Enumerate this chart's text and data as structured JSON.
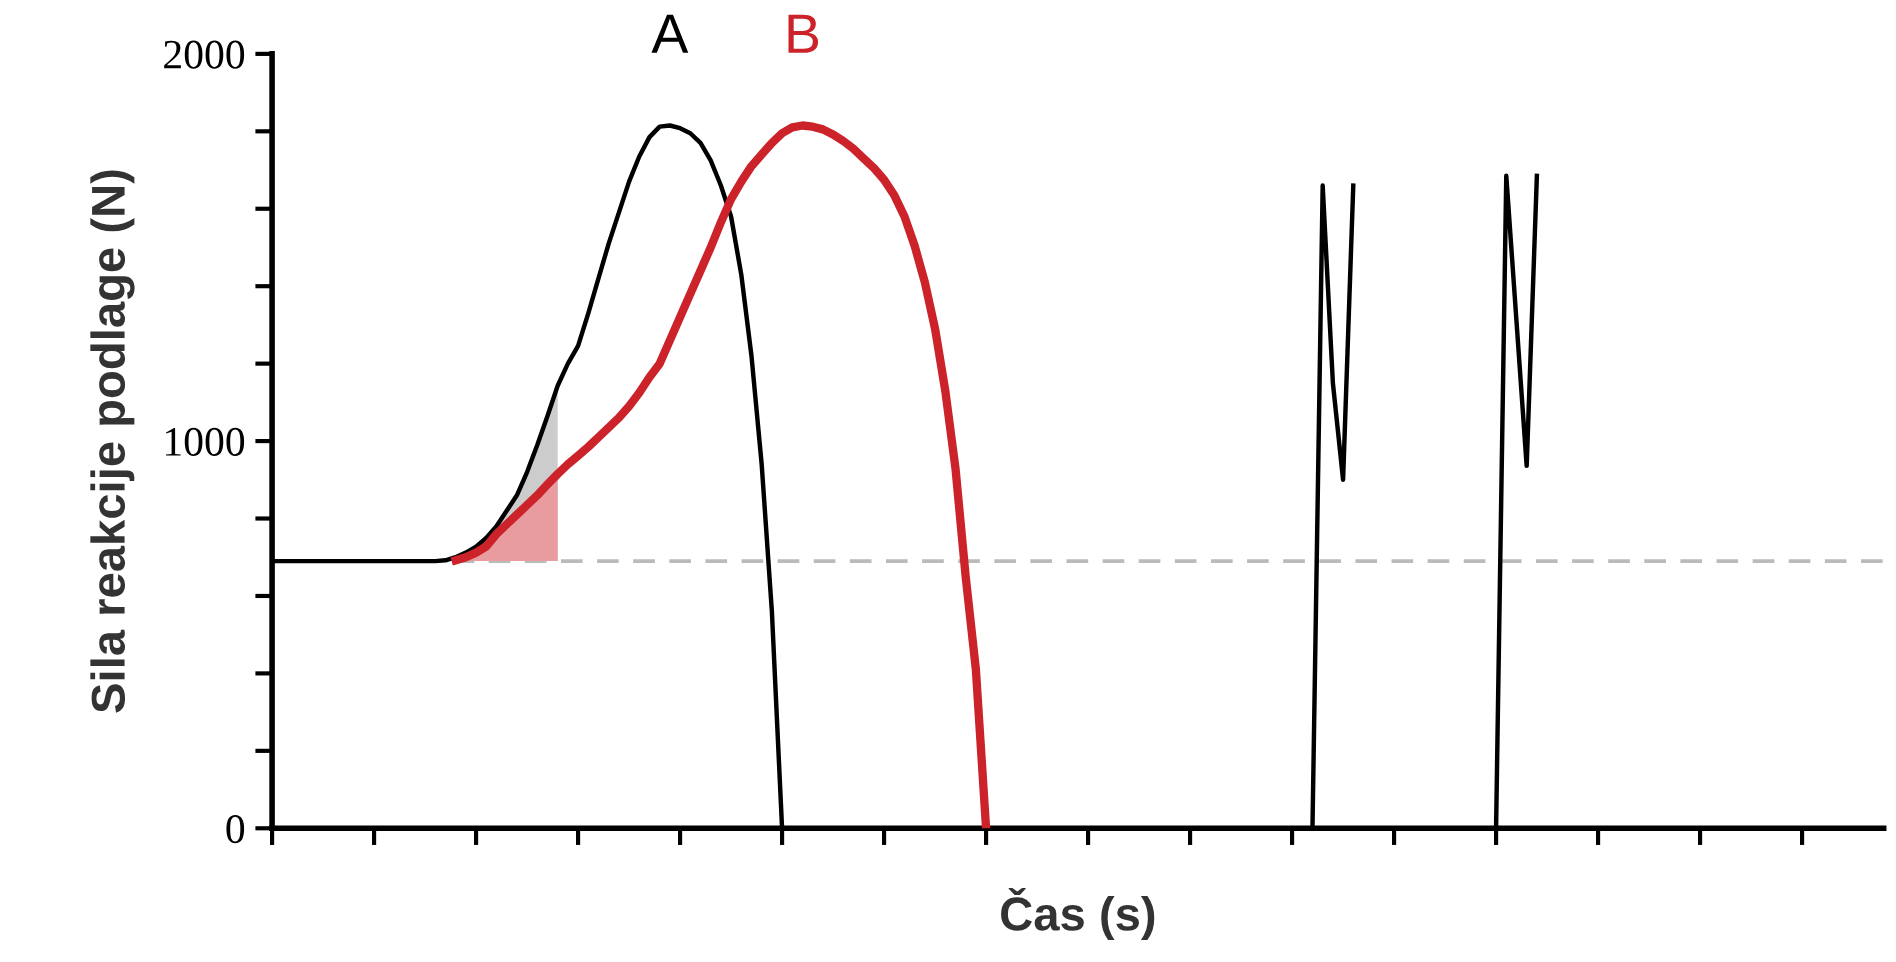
{
  "chart_data": {
    "type": "line",
    "xlabel": "Čas (s)",
    "ylabel": "Sila reakcije podlage (N)",
    "categories": [
      null,
      null,
      null,
      null,
      null,
      null,
      null,
      null,
      null,
      null,
      null,
      null,
      null,
      null,
      null,
      null,
      null,
      null,
      null,
      null,
      null,
      null,
      null,
      null,
      null,
      null,
      null,
      null,
      null,
      null,
      null,
      null,
      null,
      null,
      null,
      null,
      null,
      null,
      null,
      null,
      null,
      null,
      null,
      null,
      null,
      null,
      null,
      null,
      null,
      null,
      null,
      null,
      null,
      null,
      null,
      null,
      null,
      null,
      null,
      null,
      null,
      null,
      null,
      null,
      null,
      null,
      null,
      null,
      null,
      null,
      null,
      null,
      null,
      null,
      null,
      null,
      null,
      null,
      null,
      null,
      null,
      null,
      null,
      null,
      null,
      null,
      null,
      null,
      null,
      null,
      null,
      null,
      null,
      null,
      null,
      null,
      null,
      null,
      null,
      null,
      null,
      null,
      null,
      null,
      null,
      null,
      null,
      null,
      null,
      null,
      null,
      null,
      null,
      null,
      null,
      null,
      null,
      null,
      null,
      null,
      null,
      null,
      null,
      null,
      null,
      null,
      null,
      null,
      null,
      null,
      null,
      null,
      null,
      null,
      null,
      null,
      null,
      null,
      null,
      null,
      null,
      null,
      null,
      null,
      null,
      null,
      null,
      null,
      null,
      null,
      null,
      null,
      null,
      null,
      null,
      null,
      null,
      null,
      null
    ],
    "ylim": [
      0,
      2000
    ],
    "yticks": [
      0,
      {
        "value": 200,
        "label": null
      },
      {
        "value": 400,
        "label": null
      },
      {
        "value": 600,
        "label": null
      },
      {
        "value": 800,
        "label": null
      },
      1000,
      {
        "value": 1200,
        "label": null
      },
      {
        "value": 1400,
        "label": null
      },
      {
        "value": 1600,
        "label": null
      },
      {
        "value": 1800,
        "label": null
      },
      2000
    ],
    "grid": false,
    "legend": false,
    "marker": "none",
    "line_style": "solid",
    "ref_lines": [
      {
        "axis": "y",
        "value": 690,
        "color": "#bbbbbb",
        "line_style": "dashed"
      }
    ],
    "series": [
      {
        "name": "A",
        "color": "#000000",
        "values": [
          690,
          690,
          690,
          690,
          690,
          690,
          690,
          690,
          690,
          690,
          690,
          690,
          690,
          690,
          690,
          690,
          690,
          692,
          700,
          712,
          727,
          750,
          780,
          820,
          860,
          920,
          990,
          1065,
          1143,
          1200,
          1246,
          1330,
          1420,
          1510,
          1590,
          1670,
          1735,
          1785,
          1812,
          1815,
          1808,
          1795,
          1770,
          1725,
          1660,
          1580,
          1430,
          1220,
          940,
          560,
          0,
          null,
          null,
          null,
          null,
          null,
          null,
          null,
          null,
          null,
          null,
          null,
          null,
          null,
          null,
          null,
          null,
          null,
          null,
          null,
          null,
          null,
          null,
          null,
          null,
          null,
          null,
          null,
          null,
          null,
          null,
          null,
          null,
          null,
          null,
          null,
          null,
          null,
          null,
          null,
          null,
          null,
          null,
          null,
          null,
          null,
          null,
          null,
          null,
          null,
          null,
          null,
          null,
          null,
          null,
          null,
          null,
          null,
          null,
          null,
          null,
          null,
          null,
          null,
          null,
          null,
          null,
          null,
          null,
          null,
          null,
          null,
          null,
          null,
          null,
          null,
          null,
          null,
          null,
          null,
          null,
          null,
          null,
          null,
          null,
          null,
          null,
          null,
          null,
          null,
          null,
          null,
          null,
          null,
          null,
          null,
          null,
          null,
          null,
          null,
          null,
          null,
          null,
          null,
          null,
          null,
          null,
          null,
          null
        ],
        "lower": [
          null,
          null,
          null,
          null,
          null,
          null,
          null,
          null,
          null,
          null,
          null,
          null,
          null,
          null,
          null,
          null,
          null,
          690,
          690,
          690,
          690,
          690,
          690,
          690,
          690,
          690,
          690,
          690,
          690,
          null,
          null,
          null,
          null,
          null,
          null,
          null,
          null,
          null,
          null,
          null,
          null,
          null,
          null,
          null,
          null,
          null,
          null,
          null,
          null,
          null,
          null,
          null,
          null,
          null,
          null,
          null,
          null,
          null,
          null,
          null,
          null,
          null,
          null,
          null,
          null,
          null,
          null,
          null,
          null,
          null,
          null,
          null,
          null,
          null,
          null,
          null,
          null,
          null,
          null,
          null,
          null,
          null,
          null,
          null,
          null,
          null,
          null,
          null,
          null,
          null,
          null,
          null,
          null,
          null,
          null,
          null,
          null,
          null,
          null,
          null,
          null,
          null,
          null,
          null,
          null,
          null,
          null,
          null,
          null,
          null,
          null,
          null,
          null,
          null,
          null,
          null,
          null,
          null,
          null,
          null,
          null,
          null,
          null,
          null,
          null,
          null,
          null,
          null,
          null,
          null,
          null,
          null,
          null,
          null,
          null,
          null,
          null,
          null,
          null,
          null,
          null,
          null,
          null,
          null,
          null,
          null,
          null,
          null,
          null,
          null,
          null,
          null,
          null,
          null,
          null,
          null,
          null,
          null,
          null
        ],
        "upper": [
          null,
          null,
          null,
          null,
          null,
          null,
          null,
          null,
          null,
          null,
          null,
          null,
          null,
          null,
          null,
          null,
          null,
          692,
          700,
          712,
          727,
          750,
          780,
          820,
          860,
          920,
          990,
          1065,
          1143,
          null,
          null,
          null,
          null,
          null,
          null,
          null,
          null,
          null,
          null,
          null,
          null,
          null,
          null,
          null,
          null,
          null,
          null,
          null,
          null,
          null,
          null,
          null,
          null,
          null,
          null,
          null,
          null,
          null,
          null,
          null,
          null,
          null,
          null,
          null,
          null,
          null,
          null,
          null,
          null,
          null,
          null,
          null,
          null,
          null,
          null,
          null,
          null,
          null,
          null,
          null,
          null,
          null,
          null,
          null,
          null,
          null,
          null,
          null,
          null,
          null,
          null,
          null,
          null,
          null,
          null,
          null,
          null,
          null,
          null,
          null,
          null,
          null,
          null,
          null,
          null,
          null,
          null,
          null,
          null,
          null,
          null,
          null,
          null,
          null,
          null,
          null,
          null,
          null,
          null,
          null,
          null,
          null,
          null,
          null,
          null,
          null,
          null,
          null,
          null,
          null,
          null,
          null,
          null,
          null,
          null,
          null,
          null,
          null,
          null,
          null,
          null,
          null,
          null,
          null,
          null,
          null,
          null,
          null,
          null,
          null,
          null,
          null,
          null,
          null,
          null,
          null,
          null,
          null,
          null
        ]
      },
      {
        "name": "B",
        "color": "#cc2229",
        "values": [
          null,
          null,
          null,
          null,
          null,
          null,
          null,
          null,
          null,
          null,
          null,
          null,
          null,
          null,
          null,
          null,
          null,
          null,
          692,
          700,
          712,
          728,
          760,
          785,
          810,
          835,
          860,
          888,
          915,
          940,
          962,
          985,
          1010,
          1035,
          1060,
          1090,
          1125,
          1165,
          1200,
          1260,
          1320,
          1380,
          1440,
          1500,
          1565,
          1625,
          1670,
          1710,
          1740,
          1770,
          1795,
          1810,
          1815,
          1812,
          1805,
          1792,
          1775,
          1755,
          1730,
          1705,
          1675,
          1635,
          1580,
          1504,
          1410,
          1290,
          1130,
          930,
          650,
          410,
          0,
          null,
          null,
          null,
          null,
          null,
          null,
          null,
          null,
          null,
          null,
          null,
          null,
          null,
          null,
          null,
          null,
          null,
          null,
          null,
          null,
          null,
          null,
          null,
          null,
          null,
          null,
          null,
          null,
          null,
          null,
          null,
          null,
          null,
          null,
          null,
          null,
          null,
          null,
          null,
          null,
          null,
          null,
          null,
          null,
          null,
          null,
          null,
          null,
          null,
          null,
          null,
          null,
          null,
          null,
          null,
          null,
          null,
          null,
          null,
          null,
          null,
          null,
          null,
          null,
          null,
          null,
          null,
          null,
          null,
          null,
          null,
          null,
          null,
          null,
          null,
          null,
          null,
          null,
          null,
          null,
          null,
          null,
          null,
          null,
          null,
          null,
          null,
          null
        ],
        "lower": [
          null,
          null,
          null,
          null,
          null,
          null,
          null,
          null,
          null,
          null,
          null,
          null,
          null,
          null,
          null,
          null,
          null,
          null,
          690,
          690,
          690,
          690,
          690,
          690,
          690,
          690,
          690,
          690,
          690,
          null,
          null,
          null,
          null,
          null,
          null,
          null,
          null,
          null,
          null,
          null,
          null,
          null,
          null,
          null,
          null,
          null,
          null,
          null,
          null,
          null,
          null,
          null,
          null,
          null,
          null,
          null,
          null,
          null,
          null,
          null,
          null,
          null,
          null,
          null,
          null,
          null,
          null,
          null,
          null,
          null,
          null,
          null,
          null,
          null,
          null,
          null,
          null,
          null,
          null,
          null,
          null,
          null,
          null,
          null,
          null,
          null,
          null,
          null,
          null,
          null,
          null,
          null,
          null,
          null,
          null,
          null,
          null,
          null,
          null,
          null,
          null,
          null,
          null,
          null,
          null,
          null,
          null,
          null,
          null,
          null,
          null,
          null,
          null,
          null,
          null,
          null,
          null,
          null,
          null,
          null,
          null,
          null,
          null,
          null,
          null,
          null,
          null,
          null,
          null,
          null,
          null,
          null,
          null,
          null,
          null,
          null,
          null,
          null,
          null,
          null,
          null,
          null,
          null,
          null,
          null,
          null,
          null,
          null,
          null,
          null,
          null,
          null,
          null,
          null,
          null,
          null,
          null,
          null,
          null
        ],
        "upper": [
          null,
          null,
          null,
          null,
          null,
          null,
          null,
          null,
          null,
          null,
          null,
          null,
          null,
          null,
          null,
          null,
          null,
          null,
          692,
          700,
          712,
          728,
          760,
          785,
          810,
          835,
          860,
          888,
          915,
          null,
          null,
          null,
          null,
          null,
          null,
          null,
          null,
          null,
          null,
          null,
          null,
          null,
          null,
          null,
          null,
          null,
          null,
          null,
          null,
          null,
          null,
          null,
          null,
          null,
          null,
          null,
          null,
          null,
          null,
          null,
          null,
          null,
          null,
          null,
          null,
          null,
          null,
          null,
          null,
          null,
          null,
          null,
          null,
          null,
          null,
          null,
          null,
          null,
          null,
          null,
          null,
          null,
          null,
          null,
          null,
          null,
          null,
          null,
          null,
          null,
          null,
          null,
          null,
          null,
          null,
          null,
          null,
          null,
          null,
          null,
          null,
          null,
          null,
          null,
          null,
          null,
          null,
          null,
          null,
          null,
          null,
          null,
          null,
          null,
          null,
          null,
          null,
          null,
          null,
          null,
          null,
          null,
          null,
          null,
          null,
          null,
          null,
          null,
          null,
          null,
          null,
          null,
          null,
          null,
          null,
          null,
          null,
          null,
          null,
          null,
          null,
          null,
          null,
          null,
          null,
          null,
          null,
          null,
          null,
          null,
          null,
          null,
          null,
          null,
          null,
          null,
          null,
          null,
          null
        ]
      },
      {
        "color": "#000000",
        "values": [
          null,
          null,
          null,
          null,
          null,
          null,
          null,
          null,
          null,
          null,
          null,
          null,
          null,
          null,
          null,
          null,
          null,
          null,
          null,
          null,
          null,
          null,
          null,
          null,
          null,
          null,
          null,
          null,
          null,
          null,
          null,
          null,
          null,
          null,
          null,
          null,
          null,
          null,
          null,
          null,
          null,
          null,
          null,
          null,
          null,
          null,
          null,
          null,
          null,
          null,
          null,
          null,
          null,
          null,
          null,
          null,
          null,
          null,
          null,
          null,
          null,
          null,
          null,
          null,
          null,
          null,
          null,
          null,
          null,
          null,
          null,
          null,
          null,
          null,
          null,
          null,
          null,
          null,
          null,
          null,
          null,
          null,
          null,
          null,
          null,
          null,
          null,
          null,
          null,
          null,
          null,
          null,
          null,
          null,
          null,
          null,
          0,
          0,
          0,
          0,
          0,
          0,
          0,
          1660,
          1150,
          900,
          1660,
          null,
          null,
          null,
          null,
          null,
          null,
          null,
          null,
          null,
          null,
          null,
          null,
          null,
          0,
          1685,
          1310,
          936,
          1685,
          null,
          null,
          null,
          null,
          null,
          null,
          null,
          null,
          null,
          null,
          null,
          null,
          null,
          null,
          null,
          null,
          null,
          null,
          null,
          null,
          null,
          null,
          null,
          null,
          null,
          null,
          null,
          null,
          null,
          null,
          null,
          null,
          null,
          null
        ]
      }
    ]
  }
}
